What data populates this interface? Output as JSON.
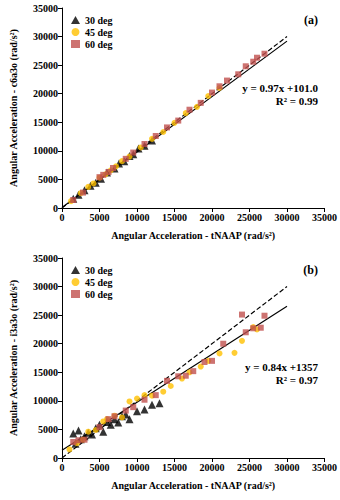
{
  "chart_data": [
    {
      "type": "scatter",
      "title": "(a)",
      "xlabel": "Angular Acceleration - tNAAP (rad/s²)",
      "ylabel": "Angular Acceleration - c6a3o (rad/s²)",
      "xlim": [
        0,
        35000
      ],
      "xticks": [
        0,
        5000,
        10000,
        15000,
        20000,
        25000,
        30000,
        35000
      ],
      "ylim": [
        0,
        35000
      ],
      "yticks": [
        0,
        5000,
        10000,
        15000,
        20000,
        25000,
        30000,
        35000
      ],
      "grid": false,
      "legend": "upper left",
      "annotations": [
        "y = 0.97x +101.0",
        "R² = 0.99"
      ],
      "series": [
        {
          "name": "30 deg",
          "color": "#000000",
          "marker": "triangle",
          "x": [
            1500,
            2200,
            3000,
            3800,
            4500,
            5200,
            6000,
            7000,
            7600,
            8300,
            9000,
            9500,
            10200,
            11000,
            12000
          ],
          "values": [
            1600,
            2300,
            3100,
            3900,
            4400,
            5100,
            6200,
            6900,
            7800,
            8200,
            9100,
            9400,
            10400,
            10900,
            11800
          ]
        },
        {
          "name": "45 deg",
          "color": "#ffc000",
          "marker": "circle",
          "x": [
            1200,
            2500,
            3500,
            4200,
            5000,
            5800,
            6500,
            7200,
            8000,
            9000,
            10500,
            12000,
            13500,
            15000,
            16500,
            18000,
            19500,
            21000
          ],
          "values": [
            1200,
            2600,
            3700,
            4300,
            5300,
            5900,
            6600,
            7300,
            8200,
            9000,
            10600,
            12100,
            13300,
            14900,
            16600,
            17700,
            19600,
            21000
          ]
        },
        {
          "name": "60 deg",
          "color": "#c0504d",
          "marker": "square",
          "x": [
            1500,
            2800,
            5000,
            5500,
            6200,
            6800,
            8500,
            9500,
            11000,
            12500,
            14000,
            15500,
            17000,
            18500,
            20000,
            21000,
            22000,
            23500,
            24500,
            25500,
            26000,
            27000
          ],
          "values": [
            1400,
            2700,
            5400,
            5800,
            6300,
            7000,
            8600,
            9700,
            11200,
            12600,
            14100,
            15300,
            17200,
            18400,
            20200,
            21300,
            22300,
            23400,
            24800,
            25600,
            26300,
            27000
          ]
        },
        {
          "type": "line",
          "line_style": "dashed",
          "color": "#000000",
          "x": [
            0,
            30000
          ],
          "values": [
            0,
            30000
          ]
        },
        {
          "type": "line",
          "line_style": "solid",
          "color": "#000000",
          "x": [
            0,
            30000
          ],
          "values": [
            101,
            29201
          ]
        }
      ]
    },
    {
      "type": "scatter",
      "title": "(b)",
      "xlabel": "Angular Acceleration - tNAAP (rad/s²)",
      "ylabel": "Angular Acceleration - i3a3o (rad/s²)",
      "xlim": [
        0,
        35000
      ],
      "xticks": [
        0,
        5000,
        10000,
        15000,
        20000,
        25000,
        30000,
        35000
      ],
      "ylim": [
        0,
        35000
      ],
      "yticks": [
        0,
        5000,
        10000,
        15000,
        20000,
        25000,
        30000,
        35000
      ],
      "grid": false,
      "legend": "upper left",
      "annotations": [
        "y = 0.84x +1357",
        "R² = 0.97"
      ],
      "series": [
        {
          "name": "30 deg",
          "color": "#000000",
          "marker": "triangle",
          "x": [
            1500,
            1800,
            2200,
            2500,
            3000,
            3500,
            4000,
            4500,
            5000,
            5500,
            6000,
            6500,
            7000,
            7500,
            8000,
            8500,
            9000,
            10000,
            11000,
            12000,
            13000
          ],
          "values": [
            4300,
            2500,
            4800,
            3300,
            3800,
            4400,
            4100,
            5200,
            5800,
            4600,
            6300,
            5800,
            6800,
            6200,
            7300,
            7600,
            6800,
            8200,
            8500,
            9300,
            9600
          ]
        },
        {
          "name": "45 deg",
          "color": "#ffc000",
          "marker": "circle",
          "x": [
            1000,
            2000,
            2800,
            3500,
            4500,
            5500,
            6000,
            7000,
            8000,
            9000,
            10000,
            11000,
            12000,
            13500,
            14500,
            16000,
            17000,
            18500,
            19500,
            21000,
            23000,
            24000,
            25500,
            26000
          ],
          "values": [
            1500,
            2600,
            3200,
            4600,
            4900,
            6400,
            6800,
            7400,
            7100,
            9900,
            10400,
            11000,
            10900,
            11600,
            12600,
            13900,
            15000,
            16000,
            17000,
            18300,
            18400,
            20500,
            22900,
            22500
          ]
        },
        {
          "name": "60 deg",
          "color": "#c0504d",
          "marker": "square",
          "x": [
            1500,
            2200,
            3000,
            5000,
            6200,
            7000,
            8500,
            9500,
            11000,
            12500,
            14000,
            15500,
            16500,
            17500,
            19000,
            20000,
            21500,
            24000,
            24500,
            25500,
            26500,
            27000
          ],
          "values": [
            2800,
            3100,
            3200,
            5400,
            6800,
            7300,
            8300,
            8900,
            10200,
            11000,
            13500,
            14300,
            14400,
            15200,
            16800,
            17000,
            20000,
            25100,
            22000,
            22700,
            22800,
            24900
          ]
        },
        {
          "type": "line",
          "line_style": "dashed",
          "color": "#000000",
          "x": [
            0,
            30000
          ],
          "values": [
            0,
            30000
          ]
        },
        {
          "type": "line",
          "line_style": "solid",
          "color": "#000000",
          "x": [
            0,
            30000
          ],
          "values": [
            1357,
            26557
          ]
        }
      ]
    }
  ]
}
